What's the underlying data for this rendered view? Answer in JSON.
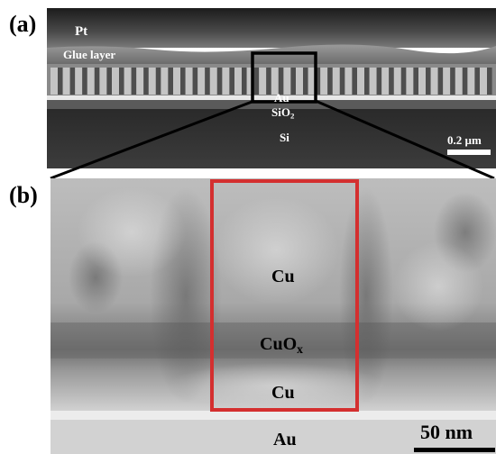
{
  "panel_a": {
    "label": "(a)",
    "layers": {
      "pt": "Pt",
      "glue": "Glue layer",
      "au": "Au",
      "sio2_base": "SiO",
      "sio2_sub": "2",
      "si": "Si"
    },
    "scale_bar": "0.2 µm",
    "pillar_count": 36
  },
  "panel_b": {
    "label": "(b)",
    "layers": {
      "cu_top": "Cu",
      "cuox_base": "CuO",
      "cuox_sub": "x",
      "cu_bottom": "Cu",
      "au": "Au"
    },
    "scale_bar": "50 nm"
  },
  "colors": {
    "highlight_box_a": "#000000",
    "highlight_box_b": "#d42f2f",
    "text_on_image": "#ffffff"
  }
}
